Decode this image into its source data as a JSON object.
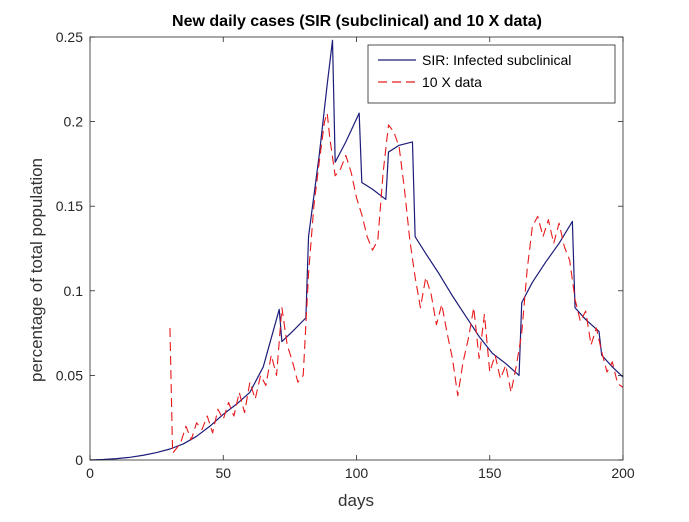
{
  "chart_data": {
    "type": "line",
    "title": "New daily cases (SIR (subclinical) and 10 X data)",
    "xlabel": "days",
    "ylabel": "percentage of total population",
    "xlim": [
      0,
      200
    ],
    "ylim": [
      0,
      0.25
    ],
    "x_ticks": [
      0,
      50,
      100,
      150,
      200
    ],
    "y_ticks": [
      0,
      0.05,
      0.1,
      0.15,
      0.2,
      0.25
    ],
    "x_tick_labels": [
      "0",
      "50",
      "100",
      "150",
      "200"
    ],
    "y_tick_labels": [
      "0",
      "0.05",
      "0.1",
      "0.15",
      "0.2",
      "0.25"
    ],
    "grid": false,
    "legend_position": "top-right",
    "series": [
      {
        "name": "SIR: Infected subclinical",
        "color": "#1c1c7a",
        "style": "solid",
        "x": [
          0,
          5,
          10,
          15,
          20,
          25,
          30,
          35,
          40,
          45,
          50,
          55,
          60,
          65,
          71,
          72,
          76,
          81,
          82,
          86,
          89,
          91,
          92,
          96,
          101,
          102,
          106,
          111,
          112,
          116,
          121,
          122,
          126,
          131,
          136,
          141,
          146,
          151,
          156,
          161,
          162,
          166,
          171,
          176,
          181,
          182,
          186,
          191,
          192,
          196,
          200
        ],
        "y": [
          0,
          0.0003,
          0.0008,
          0.0016,
          0.0028,
          0.0044,
          0.0065,
          0.0095,
          0.014,
          0.02,
          0.027,
          0.033,
          0.04,
          0.055,
          0.089,
          0.07,
          0.076,
          0.084,
          0.132,
          0.18,
          0.222,
          0.248,
          0.176,
          0.188,
          0.205,
          0.164,
          0.16,
          0.154,
          0.182,
          0.186,
          0.188,
          0.132,
          0.122,
          0.11,
          0.097,
          0.085,
          0.073,
          0.063,
          0.057,
          0.05,
          0.093,
          0.105,
          0.117,
          0.128,
          0.141,
          0.09,
          0.083,
          0.076,
          0.062,
          0.055,
          0.049
        ]
      },
      {
        "name": "10 X data",
        "color": "#e8191b",
        "style": "dashed",
        "x": [
          30,
          31,
          32,
          34,
          36,
          38,
          40,
          42,
          44,
          46,
          48,
          50,
          52,
          54,
          56,
          58,
          60,
          62,
          64,
          66,
          68,
          70,
          72,
          74,
          76,
          78,
          80,
          82,
          84,
          86,
          88,
          89,
          90,
          92,
          94,
          96,
          98,
          100,
          102,
          104,
          106,
          108,
          110,
          112,
          114,
          116,
          118,
          120,
          122,
          124,
          126,
          128,
          130,
          132,
          134,
          136,
          138,
          140,
          142,
          144,
          146,
          148,
          150,
          152,
          154,
          156,
          158,
          160,
          162,
          164,
          166,
          168,
          170,
          172,
          174,
          176,
          178,
          180,
          182,
          184,
          186,
          188,
          190,
          192,
          194,
          196,
          198,
          200
        ],
        "y": [
          0.078,
          0.004,
          0.006,
          0.01,
          0.02,
          0.012,
          0.022,
          0.018,
          0.026,
          0.016,
          0.03,
          0.024,
          0.034,
          0.026,
          0.04,
          0.028,
          0.046,
          0.036,
          0.05,
          0.044,
          0.062,
          0.05,
          0.09,
          0.068,
          0.058,
          0.046,
          0.05,
          0.11,
          0.15,
          0.176,
          0.2,
          0.205,
          0.19,
          0.168,
          0.172,
          0.18,
          0.17,
          0.155,
          0.145,
          0.132,
          0.124,
          0.13,
          0.17,
          0.198,
          0.194,
          0.185,
          0.16,
          0.13,
          0.108,
          0.09,
          0.108,
          0.098,
          0.08,
          0.092,
          0.075,
          0.06,
          0.038,
          0.058,
          0.072,
          0.09,
          0.06,
          0.086,
          0.052,
          0.062,
          0.048,
          0.056,
          0.04,
          0.056,
          0.075,
          0.112,
          0.138,
          0.144,
          0.132,
          0.142,
          0.128,
          0.14,
          0.126,
          0.118,
          0.095,
          0.082,
          0.088,
          0.068,
          0.078,
          0.064,
          0.052,
          0.058,
          0.045,
          0.043
        ]
      }
    ]
  }
}
